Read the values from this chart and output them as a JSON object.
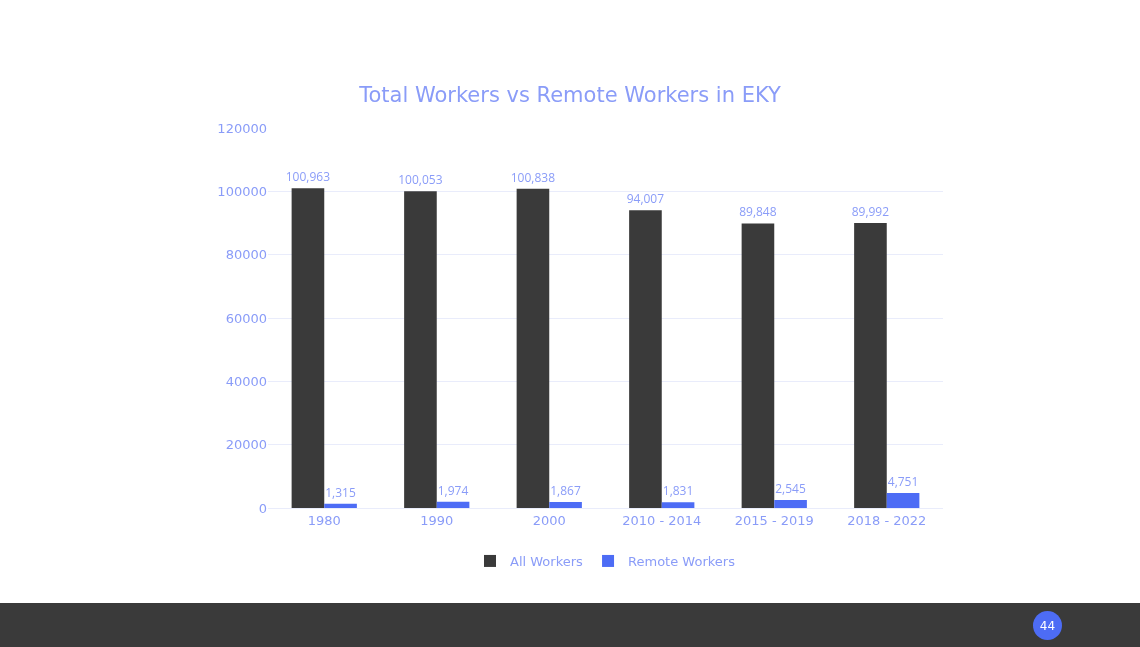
{
  "chart_data": {
    "type": "bar",
    "title": "Total Workers vs Remote Workers in EKY",
    "categories": [
      "1980",
      "1990",
      "2000",
      "2010 - 2014",
      "2015 - 2019",
      "2018 - 2022"
    ],
    "series": [
      {
        "name": "All Workers",
        "color": "#3a3a3a",
        "values": [
          100963,
          100053,
          100838,
          94007,
          89848,
          89992
        ],
        "value_labels": [
          "100,963",
          "100,053",
          "100,838",
          "94,007",
          "89,848",
          "89,992"
        ]
      },
      {
        "name": "Remote Workers",
        "color": "#4d6cf5",
        "values": [
          1315,
          1974,
          1867,
          1831,
          2545,
          4751
        ],
        "value_labels": [
          "1,315",
          "1,974",
          "1,867",
          "1,831",
          "2,545",
          "4,751"
        ]
      }
    ],
    "ylim": [
      0,
      120000
    ],
    "yticks": [
      0,
      20000,
      40000,
      60000,
      80000,
      100000,
      120000
    ],
    "grid": "y",
    "legend": "bottom",
    "annotations": [
      "44"
    ]
  }
}
